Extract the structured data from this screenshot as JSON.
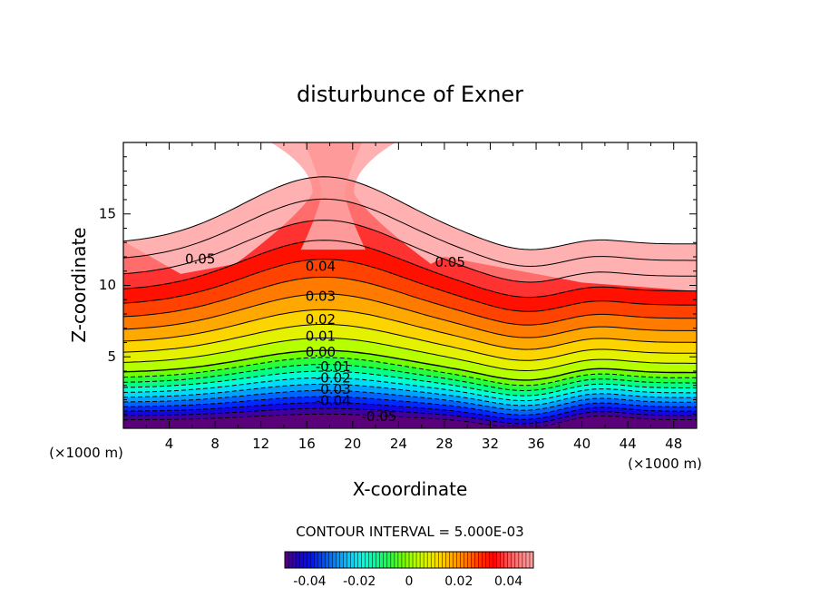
{
  "chart_data": {
    "type": "contour",
    "title": "disturbunce of Exner",
    "xlabel": "X-coordinate",
    "ylabel": "Z-coordinate",
    "x_unit_left": "(×1000 m)",
    "x_unit_right": "(×1000 m)",
    "xlim": [
      0,
      50
    ],
    "ylim": [
      0,
      20
    ],
    "x_ticks": [
      4,
      8,
      12,
      16,
      20,
      24,
      28,
      32,
      36,
      40,
      44,
      48
    ],
    "y_ticks": [
      5,
      10,
      15
    ],
    "contour_interval_text": "CONTOUR INTERVAL = 5.000E-03",
    "contour_interval": 0.005,
    "field_range": [
      -0.05,
      0.05
    ],
    "contour_labels": [
      {
        "text": "0.05",
        "x": 6.7,
        "z": 11.8
      },
      {
        "text": "0.05",
        "x": 28.5,
        "z": 11.6
      },
      {
        "text": "0.04",
        "x": 17.2,
        "z": 11.3
      },
      {
        "text": "0.03",
        "x": 17.2,
        "z": 9.2
      },
      {
        "text": "0.02",
        "x": 17.2,
        "z": 7.6
      },
      {
        "text": "0.01",
        "x": 17.2,
        "z": 6.4
      },
      {
        "text": "0.00",
        "x": 17.2,
        "z": 5.3
      },
      {
        "text": "-0.01",
        "x": 18.3,
        "z": 4.3
      },
      {
        "text": "-0.02",
        "x": 18.3,
        "z": 3.5
      },
      {
        "text": "-0.03",
        "x": 18.3,
        "z": 2.7
      },
      {
        "text": "-0.04",
        "x": 18.3,
        "z": 1.9
      },
      {
        "text": "-0.05",
        "x": 22.3,
        "z": 0.8
      }
    ],
    "colorbar": {
      "range": [
        -0.05,
        0.05
      ],
      "tick_labels": [
        "-0.04",
        "-0.02",
        "0",
        "0.02",
        "0.04"
      ],
      "tick_values": [
        -0.04,
        -0.02,
        0,
        0.02,
        0.04
      ]
    },
    "colors": [
      "#5a007a",
      "#2000c8",
      "#0010ff",
      "#0050ff",
      "#0090ff",
      "#00d0ff",
      "#00ffe0",
      "#00ff90",
      "#20ff40",
      "#70ff00",
      "#b8ff00",
      "#e8f000",
      "#ffd000",
      "#ffa000",
      "#ff7000",
      "#ff3000",
      "#ff0000",
      "#ff5050",
      "#ff8080",
      "#ffa0a0"
    ]
  }
}
